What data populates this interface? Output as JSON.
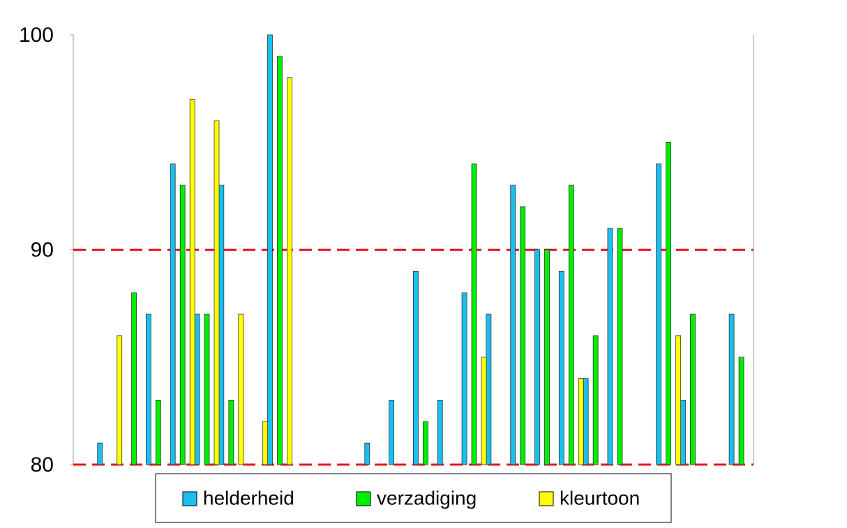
{
  "chart_data": {
    "type": "bar",
    "categories": [
      null,
      null,
      null,
      null,
      null,
      null,
      null,
      null,
      null,
      null,
      null,
      null,
      null,
      null,
      null,
      null,
      null,
      null,
      null,
      null,
      null,
      null,
      null,
      null,
      null,
      null,
      null,
      null
    ],
    "series": [
      {
        "name": "helderheid",
        "color": "#19bff0",
        "values": [
          null,
          81,
          null,
          87,
          94,
          87,
          93,
          null,
          100,
          null,
          null,
          null,
          81,
          83,
          89,
          83,
          88,
          87,
          93,
          90,
          89,
          84,
          91,
          null,
          94,
          83,
          null,
          87
        ]
      },
      {
        "name": "verzadiging",
        "color": "#00ee00",
        "values": [
          null,
          null,
          88,
          83,
          93,
          87,
          83,
          null,
          99,
          null,
          null,
          null,
          null,
          null,
          82,
          null,
          94,
          null,
          92,
          90,
          93,
          86,
          91,
          null,
          95,
          87,
          null,
          85
        ]
      },
      {
        "name": "kleurtoon",
        "color": "#ffff00",
        "values": [
          null,
          86,
          null,
          null,
          97,
          96,
          87,
          82,
          98,
          null,
          null,
          null,
          null,
          null,
          null,
          null,
          85,
          null,
          null,
          null,
          84,
          null,
          null,
          null,
          86,
          null,
          null,
          null
        ]
      }
    ],
    "ylim": [
      80,
      100
    ],
    "yticks": [
      80,
      90,
      100
    ],
    "reference_lines": [
      80,
      90
    ],
    "reference_line_color": "#e8141e",
    "legend": "bottom"
  }
}
